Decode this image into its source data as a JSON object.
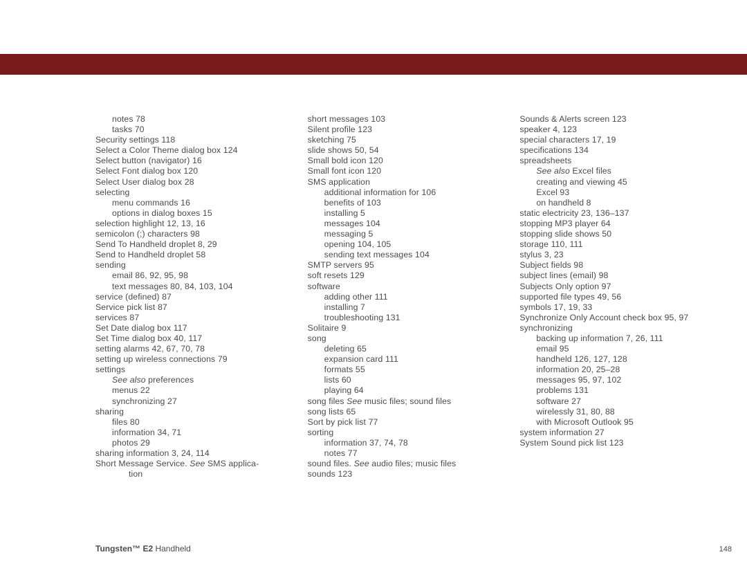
{
  "colors": {
    "bar": "#7a1b1b",
    "text": "#4a4a4a",
    "bg": "#ffffff"
  },
  "col1": [
    {
      "t": "notes 78",
      "i": 1
    },
    {
      "t": "tasks 70",
      "i": 1
    },
    {
      "t": "Security settings 118",
      "i": 0
    },
    {
      "t": "Select a Color Theme dialog box 124",
      "i": 0
    },
    {
      "t": "Select button (navigator) 16",
      "i": 0
    },
    {
      "t": "Select Font dialog box 120",
      "i": 0
    },
    {
      "t": "Select User dialog box 28",
      "i": 0
    },
    {
      "t": "selecting",
      "i": 0
    },
    {
      "t": "menu commands 16",
      "i": 1
    },
    {
      "t": "options in dialog boxes 15",
      "i": 1
    },
    {
      "t": "selection highlight 12, 13, 16",
      "i": 0
    },
    {
      "t": "semicolon (;) characters 98",
      "i": 0
    },
    {
      "t": "Send To Handheld droplet 8, 29",
      "i": 0
    },
    {
      "t": "Send to Handheld droplet 58",
      "i": 0
    },
    {
      "t": "sending",
      "i": 0
    },
    {
      "t": "email 86, 92, 95, 98",
      "i": 1
    },
    {
      "t": "text messages 80, 84, 103, 104",
      "i": 1
    },
    {
      "t": "service (defined) 87",
      "i": 0
    },
    {
      "t": "Service pick list 87",
      "i": 0
    },
    {
      "t": "services 87",
      "i": 0
    },
    {
      "t": "Set Date dialog box 117",
      "i": 0
    },
    {
      "t": "Set Time dialog box 40, 117",
      "i": 0
    },
    {
      "t": "setting alarms 42, 67, 70, 78",
      "i": 0
    },
    {
      "t": "setting up wireless connections 79",
      "i": 0
    },
    {
      "t": "settings",
      "i": 0
    },
    {
      "t": "",
      "i": 1,
      "prefix_italic": "See also ",
      "rest": "preferences"
    },
    {
      "t": "menus 22",
      "i": 1
    },
    {
      "t": "synchronizing 27",
      "i": 1
    },
    {
      "t": "sharing",
      "i": 0
    },
    {
      "t": "files 80",
      "i": 1
    },
    {
      "t": "information 34, 71",
      "i": 1
    },
    {
      "t": "photos 29",
      "i": 1
    },
    {
      "t": "sharing information 3, 24, 114",
      "i": 0
    },
    {
      "t": "",
      "i": 0,
      "pre": "Short Message Service. ",
      "mid_italic": "See ",
      "post": "SMS applica-"
    },
    {
      "t": "tion",
      "i": 2
    }
  ],
  "col2": [
    {
      "t": "short messages 103",
      "i": 0
    },
    {
      "t": "Silent profile 123",
      "i": 0
    },
    {
      "t": "sketching 75",
      "i": 0
    },
    {
      "t": "slide shows 50, 54",
      "i": 0
    },
    {
      "t": "Small bold icon 120",
      "i": 0
    },
    {
      "t": "Small font icon 120",
      "i": 0
    },
    {
      "t": "SMS application",
      "i": 0
    },
    {
      "t": "additional information for 106",
      "i": 1
    },
    {
      "t": "benefits of 103",
      "i": 1
    },
    {
      "t": "installing 5",
      "i": 1
    },
    {
      "t": "messages 104",
      "i": 1
    },
    {
      "t": "messaging 5",
      "i": 1
    },
    {
      "t": "opening 104, 105",
      "i": 1
    },
    {
      "t": "sending text messages 104",
      "i": 1
    },
    {
      "t": "SMTP servers 95",
      "i": 0
    },
    {
      "t": "soft resets 129",
      "i": 0
    },
    {
      "t": "software",
      "i": 0
    },
    {
      "t": "adding other 111",
      "i": 1
    },
    {
      "t": "installing 7",
      "i": 1
    },
    {
      "t": "troubleshooting 131",
      "i": 1
    },
    {
      "t": "Solitaire 9",
      "i": 0
    },
    {
      "t": "song",
      "i": 0
    },
    {
      "t": "deleting 65",
      "i": 1
    },
    {
      "t": "expansion card 111",
      "i": 1
    },
    {
      "t": "formats 55",
      "i": 1
    },
    {
      "t": "lists 60",
      "i": 1
    },
    {
      "t": "playing 64",
      "i": 1
    },
    {
      "t": "",
      "i": 0,
      "pre": "song files ",
      "mid_italic": "See ",
      "post": "music files; sound files"
    },
    {
      "t": "song lists 65",
      "i": 0
    },
    {
      "t": "Sort by pick list 77",
      "i": 0
    },
    {
      "t": "sorting",
      "i": 0
    },
    {
      "t": "information 37, 74, 78",
      "i": 1
    },
    {
      "t": "notes 77",
      "i": 1
    },
    {
      "t": "",
      "i": 0,
      "pre": "sound files. ",
      "mid_italic": "See ",
      "post": "audio files; music files"
    },
    {
      "t": "sounds 123",
      "i": 0
    }
  ],
  "col3": [
    {
      "t": "Sounds & Alerts screen 123",
      "i": 0
    },
    {
      "t": "speaker 4, 123",
      "i": 0
    },
    {
      "t": "special characters 17, 19",
      "i": 0
    },
    {
      "t": "specifications 134",
      "i": 0
    },
    {
      "t": "spreadsheets",
      "i": 0
    },
    {
      "t": "",
      "i": 1,
      "prefix_italic": "See also ",
      "rest": "Excel files"
    },
    {
      "t": "creating and viewing 45",
      "i": 1
    },
    {
      "t": "Excel 93",
      "i": 1
    },
    {
      "t": "on handheld 8",
      "i": 1
    },
    {
      "t": "static electricity 23, 136–137",
      "i": 0
    },
    {
      "t": "stopping MP3 player 64",
      "i": 0
    },
    {
      "t": "stopping slide shows 50",
      "i": 0
    },
    {
      "t": "storage 110, 111",
      "i": 0
    },
    {
      "t": "stylus 3, 23",
      "i": 0
    },
    {
      "t": "Subject fields 98",
      "i": 0
    },
    {
      "t": "subject lines (email) 98",
      "i": 0
    },
    {
      "t": "Subjects Only option 97",
      "i": 0
    },
    {
      "t": "supported file types 49, 56",
      "i": 0
    },
    {
      "t": "symbols 17, 19, 33",
      "i": 0
    },
    {
      "t": "Synchronize Only Account check box 95, 97",
      "i": 0
    },
    {
      "t": "synchronizing",
      "i": 0
    },
    {
      "t": "backing up information 7, 26, 111",
      "i": 1
    },
    {
      "t": "email 95",
      "i": 1
    },
    {
      "t": "handheld 126, 127, 128",
      "i": 1
    },
    {
      "t": "information 20, 25–28",
      "i": 1
    },
    {
      "t": "messages 95, 97, 102",
      "i": 1
    },
    {
      "t": "problems 131",
      "i": 1
    },
    {
      "t": "software 27",
      "i": 1
    },
    {
      "t": "wirelessly 31, 80, 88",
      "i": 1
    },
    {
      "t": "with Microsoft Outlook 95",
      "i": 1
    },
    {
      "t": "system information 27",
      "i": 0
    },
    {
      "t": "System Sound pick list 123",
      "i": 0
    }
  ],
  "footer": {
    "product_bold": "Tungsten™ E2",
    "product_rest": " Handheld",
    "page": "148"
  }
}
